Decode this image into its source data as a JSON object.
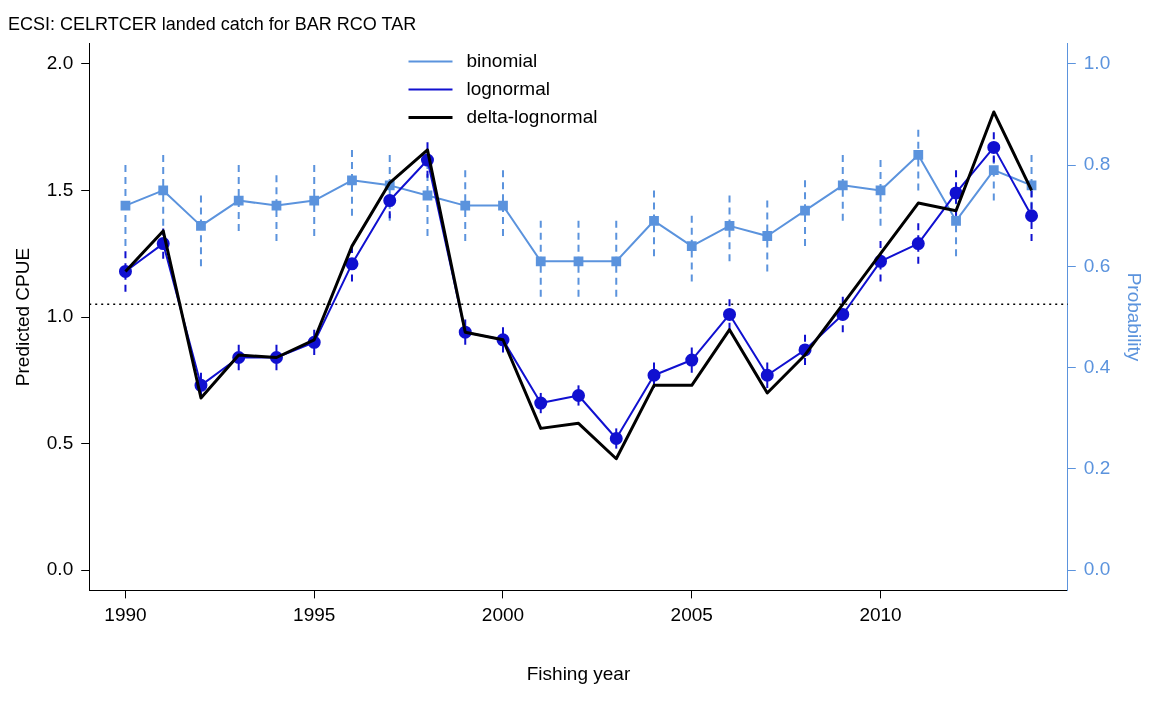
{
  "chart_data": {
    "type": "line",
    "title": "ECSI: CELRTCER landed catch for BAR RCO TAR",
    "xlabel": "Fishing year",
    "ylabel": "Predicted CPUE",
    "y2label": "Probability",
    "x": [
      1990,
      1991,
      1992,
      1993,
      1994,
      1995,
      1996,
      1997,
      1998,
      1999,
      2000,
      2001,
      2002,
      2003,
      2004,
      2005,
      2006,
      2007,
      2008,
      2009,
      2010,
      2011,
      2012,
      2013,
      2014
    ],
    "xlim": [
      1989.04,
      2014.96
    ],
    "xticks": [
      1990,
      1995,
      2000,
      2005,
      2010
    ],
    "ylim": [
      -0.08,
      2.08
    ],
    "yticks": [
      {
        "value": 0,
        "label": "0.0"
      },
      {
        "value": 0.5,
        "label": "0.5"
      },
      {
        "value": 1,
        "label": "1.0"
      },
      {
        "value": 1.5,
        "label": "1.5"
      },
      {
        "value": 2,
        "label": "2.0"
      }
    ],
    "y2lim": [
      -0.04,
      1.04
    ],
    "y2ticks": [
      {
        "value": 0,
        "label": "0.0"
      },
      {
        "value": 0.2,
        "label": "0.2"
      },
      {
        "value": 0.4,
        "label": "0.4"
      },
      {
        "value": 0.6,
        "label": "0.6"
      },
      {
        "value": 0.8,
        "label": "0.8"
      },
      {
        "value": 1,
        "label": "1.0"
      }
    ],
    "grid": false,
    "legend": "top",
    "ref_lines": [
      {
        "axis": "y",
        "value": 1.05,
        "color": "#000000",
        "line_style": "dotted"
      }
    ],
    "series": [
      {
        "name": "binomial",
        "color": "#5b93dd",
        "axis": "y2",
        "marker": "square",
        "values": [
          0.72,
          0.75,
          0.68,
          0.73,
          0.72,
          0.73,
          0.77,
          0.76,
          0.74,
          0.72,
          0.72,
          0.61,
          0.61,
          0.61,
          0.69,
          0.64,
          0.68,
          0.66,
          0.71,
          0.76,
          0.75,
          0.82,
          0.69,
          0.79,
          0.76
        ],
        "errors": [
          [
            0.64,
            0.8
          ],
          [
            0.68,
            0.82
          ],
          [
            0.6,
            0.74
          ],
          [
            0.67,
            0.8
          ],
          [
            0.65,
            0.78
          ],
          [
            0.66,
            0.8
          ],
          [
            0.7,
            0.83
          ],
          [
            0.69,
            0.82
          ],
          [
            0.66,
            0.83
          ],
          [
            0.65,
            0.79
          ],
          [
            0.66,
            0.79
          ],
          [
            0.54,
            0.69
          ],
          [
            0.54,
            0.69
          ],
          [
            0.54,
            0.69
          ],
          [
            0.62,
            0.75
          ],
          [
            0.57,
            0.7
          ],
          [
            0.61,
            0.74
          ],
          [
            0.59,
            0.73
          ],
          [
            0.64,
            0.77
          ],
          [
            0.69,
            0.82
          ],
          [
            0.68,
            0.81
          ],
          [
            0.75,
            0.87
          ],
          [
            0.62,
            0.76
          ],
          [
            0.73,
            0.84
          ],
          [
            0.69,
            0.82
          ]
        ]
      },
      {
        "name": "lognormal",
        "color": "#1010d0",
        "marker": "circle",
        "values": [
          1.18,
          1.29,
          0.73,
          0.84,
          0.84,
          0.9,
          1.21,
          1.46,
          1.62,
          0.94,
          0.91,
          0.66,
          0.69,
          0.52,
          0.77,
          0.83,
          1.01,
          0.77,
          0.87,
          1.01,
          1.22,
          1.29,
          1.49,
          1.67,
          1.4
        ],
        "errors": [
          0.08,
          0.06,
          0.05,
          0.05,
          0.05,
          0.05,
          0.07,
          0.07,
          0.07,
          0.05,
          0.05,
          0.04,
          0.04,
          0.04,
          0.05,
          0.05,
          0.06,
          0.05,
          0.06,
          0.07,
          0.08,
          0.08,
          0.09,
          0.06,
          0.1
        ]
      },
      {
        "name": "delta-lognormal",
        "color": "#000000",
        "marker": "none",
        "values": [
          1.18,
          1.34,
          0.68,
          0.85,
          0.84,
          0.91,
          1.28,
          1.53,
          1.66,
          0.94,
          0.91,
          0.56,
          0.58,
          0.44,
          0.73,
          0.73,
          0.95,
          0.7,
          0.85,
          1.05,
          1.25,
          1.45,
          1.42,
          1.81,
          1.5
        ]
      }
    ]
  }
}
